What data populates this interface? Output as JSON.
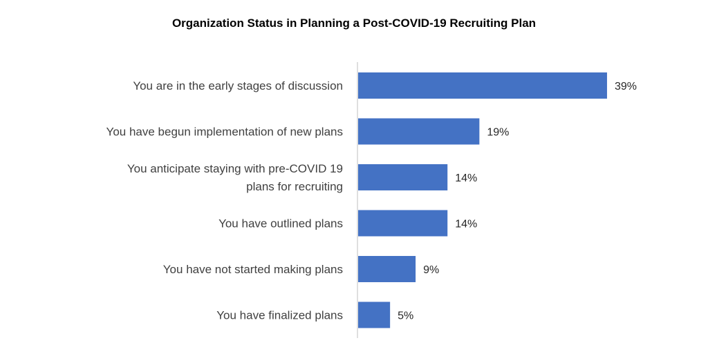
{
  "chart_data": {
    "type": "bar",
    "orientation": "horizontal",
    "title": "Organization Status in Planning a Post-COVID-19 Recruiting Plan",
    "categories": [
      [
        "You are in the early stages of discussion"
      ],
      [
        "You have begun implementation of new plans"
      ],
      [
        "You anticipate staying with pre-COVID 19",
        "plans for recruiting"
      ],
      [
        "You have outlined plans"
      ],
      [
        "You have not started making plans"
      ],
      [
        "You have finalized plans"
      ]
    ],
    "values": [
      39,
      19,
      14,
      14,
      9,
      5
    ],
    "value_labels": [
      "39%",
      "19%",
      "14%",
      "14%",
      "9%",
      "5%"
    ],
    "xlabel": "",
    "ylabel": "",
    "xlim": [
      0,
      43
    ],
    "grid": false,
    "legend": "none",
    "bar_color": "#4472C4",
    "axis_color": "#BFBFBF"
  }
}
